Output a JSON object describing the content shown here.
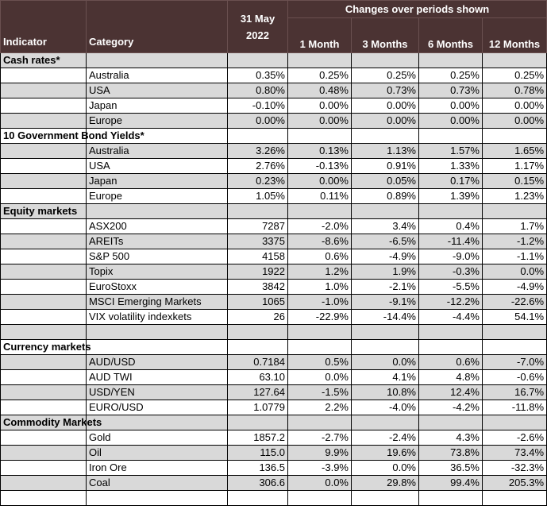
{
  "header": {
    "indicator": "Indicator",
    "category": "Category",
    "date_line1": "31 May",
    "date_line2": "2022",
    "changes_title": "Changes over periods shown",
    "periods": [
      "1 Month",
      "3 Months",
      "6 Months",
      "12 Months"
    ]
  },
  "rows": [
    {
      "type": "section",
      "label": "Cash rates*",
      "shade": true
    },
    {
      "type": "data",
      "category": "Australia",
      "value": "0.35%",
      "changes": [
        "0.25%",
        "0.25%",
        "0.25%",
        "0.25%"
      ],
      "shade": false
    },
    {
      "type": "data",
      "category": "USA",
      "value": "0.80%",
      "changes": [
        "0.48%",
        "0.73%",
        "0.73%",
        "0.78%"
      ],
      "shade": true
    },
    {
      "type": "data",
      "category": "Japan",
      "value": "-0.10%",
      "changes": [
        "0.00%",
        "0.00%",
        "0.00%",
        "0.00%"
      ],
      "shade": false
    },
    {
      "type": "data",
      "category": "Europe",
      "value": "0.00%",
      "changes": [
        "0.00%",
        "0.00%",
        "0.00%",
        "0.00%"
      ],
      "shade": true
    },
    {
      "type": "section",
      "label": "10 Government Bond Yields*",
      "shade": false
    },
    {
      "type": "data",
      "category": "Australia",
      "value": "3.26%",
      "changes": [
        "0.13%",
        "1.13%",
        "1.57%",
        "1.65%"
      ],
      "shade": true
    },
    {
      "type": "data",
      "category": "USA",
      "value": "2.76%",
      "changes": [
        "-0.13%",
        "0.91%",
        "1.33%",
        "1.17%"
      ],
      "shade": false
    },
    {
      "type": "data",
      "category": "Japan",
      "value": "0.23%",
      "changes": [
        "0.00%",
        "0.05%",
        "0.17%",
        "0.15%"
      ],
      "shade": true
    },
    {
      "type": "data",
      "category": "Europe",
      "value": "1.05%",
      "changes": [
        "0.11%",
        "0.89%",
        "1.39%",
        "1.23%"
      ],
      "shade": false
    },
    {
      "type": "section",
      "label": "Equity markets",
      "shade": true
    },
    {
      "type": "data",
      "category": "ASX200",
      "value": "7287",
      "changes": [
        "-2.0%",
        "3.4%",
        "0.4%",
        "1.7%"
      ],
      "shade": false
    },
    {
      "type": "data",
      "category": "AREITs",
      "value": "3375",
      "changes": [
        "-8.6%",
        "-6.5%",
        "-11.4%",
        "-1.2%"
      ],
      "shade": true
    },
    {
      "type": "data",
      "category": "S&P 500",
      "value": "4158",
      "changes": [
        "0.6%",
        "-4.9%",
        "-9.0%",
        "-1.1%"
      ],
      "shade": false
    },
    {
      "type": "data",
      "category": "Topix",
      "value": "1922",
      "changes": [
        "1.2%",
        "1.9%",
        "-0.3%",
        "0.0%"
      ],
      "shade": true
    },
    {
      "type": "data",
      "category": "EuroStoxx",
      "value": "3842",
      "changes": [
        "1.0%",
        "-2.1%",
        "-5.5%",
        "-4.9%"
      ],
      "shade": false
    },
    {
      "type": "data",
      "category": "MSCI Emerging Markets",
      "value": "1065",
      "changes": [
        "-1.0%",
        "-9.1%",
        "-12.2%",
        "-22.6%"
      ],
      "shade": true
    },
    {
      "type": "data",
      "category": "VIX volatility indexkets",
      "value": "26",
      "changes": [
        "-22.9%",
        "-14.4%",
        "-4.4%",
        "54.1%"
      ],
      "shade": false
    },
    {
      "type": "blank",
      "shade": true
    },
    {
      "type": "section",
      "label": "Currency markets",
      "shade": false
    },
    {
      "type": "data",
      "category": "AUD/USD",
      "value": "0.7184",
      "changes": [
        "0.5%",
        "0.0%",
        "0.6%",
        "-7.0%"
      ],
      "shade": true
    },
    {
      "type": "data",
      "category": "AUD TWI",
      "value": "63.10",
      "changes": [
        "0.0%",
        "4.1%",
        "4.8%",
        "-0.6%"
      ],
      "shade": false
    },
    {
      "type": "data",
      "category": "USD/YEN",
      "value": "127.64",
      "changes": [
        "-1.5%",
        "10.8%",
        "12.4%",
        "16.7%"
      ],
      "shade": true
    },
    {
      "type": "data",
      "category": "EURO/USD",
      "value": "1.0779",
      "changes": [
        "2.2%",
        "-4.0%",
        "-4.2%",
        "-11.8%"
      ],
      "shade": false
    },
    {
      "type": "section",
      "label": "Commodity Markets",
      "shade": true
    },
    {
      "type": "data",
      "category": "Gold",
      "value": "1857.2",
      "changes": [
        "-2.7%",
        "-2.4%",
        "4.3%",
        "-2.6%"
      ],
      "shade": false
    },
    {
      "type": "data",
      "category": "Oil",
      "value": "115.0",
      "changes": [
        "9.9%",
        "19.6%",
        "73.8%",
        "73.4%"
      ],
      "shade": true
    },
    {
      "type": "data",
      "category": "Iron Ore",
      "value": "136.5",
      "changes": [
        "-3.9%",
        "0.0%",
        "36.5%",
        "-32.3%"
      ],
      "shade": false
    },
    {
      "type": "data",
      "category": "Coal",
      "value": "306.6",
      "changes": [
        "0.0%",
        "29.8%",
        "99.4%",
        "205.3%"
      ],
      "shade": true
    },
    {
      "type": "blank",
      "shade": false
    }
  ]
}
